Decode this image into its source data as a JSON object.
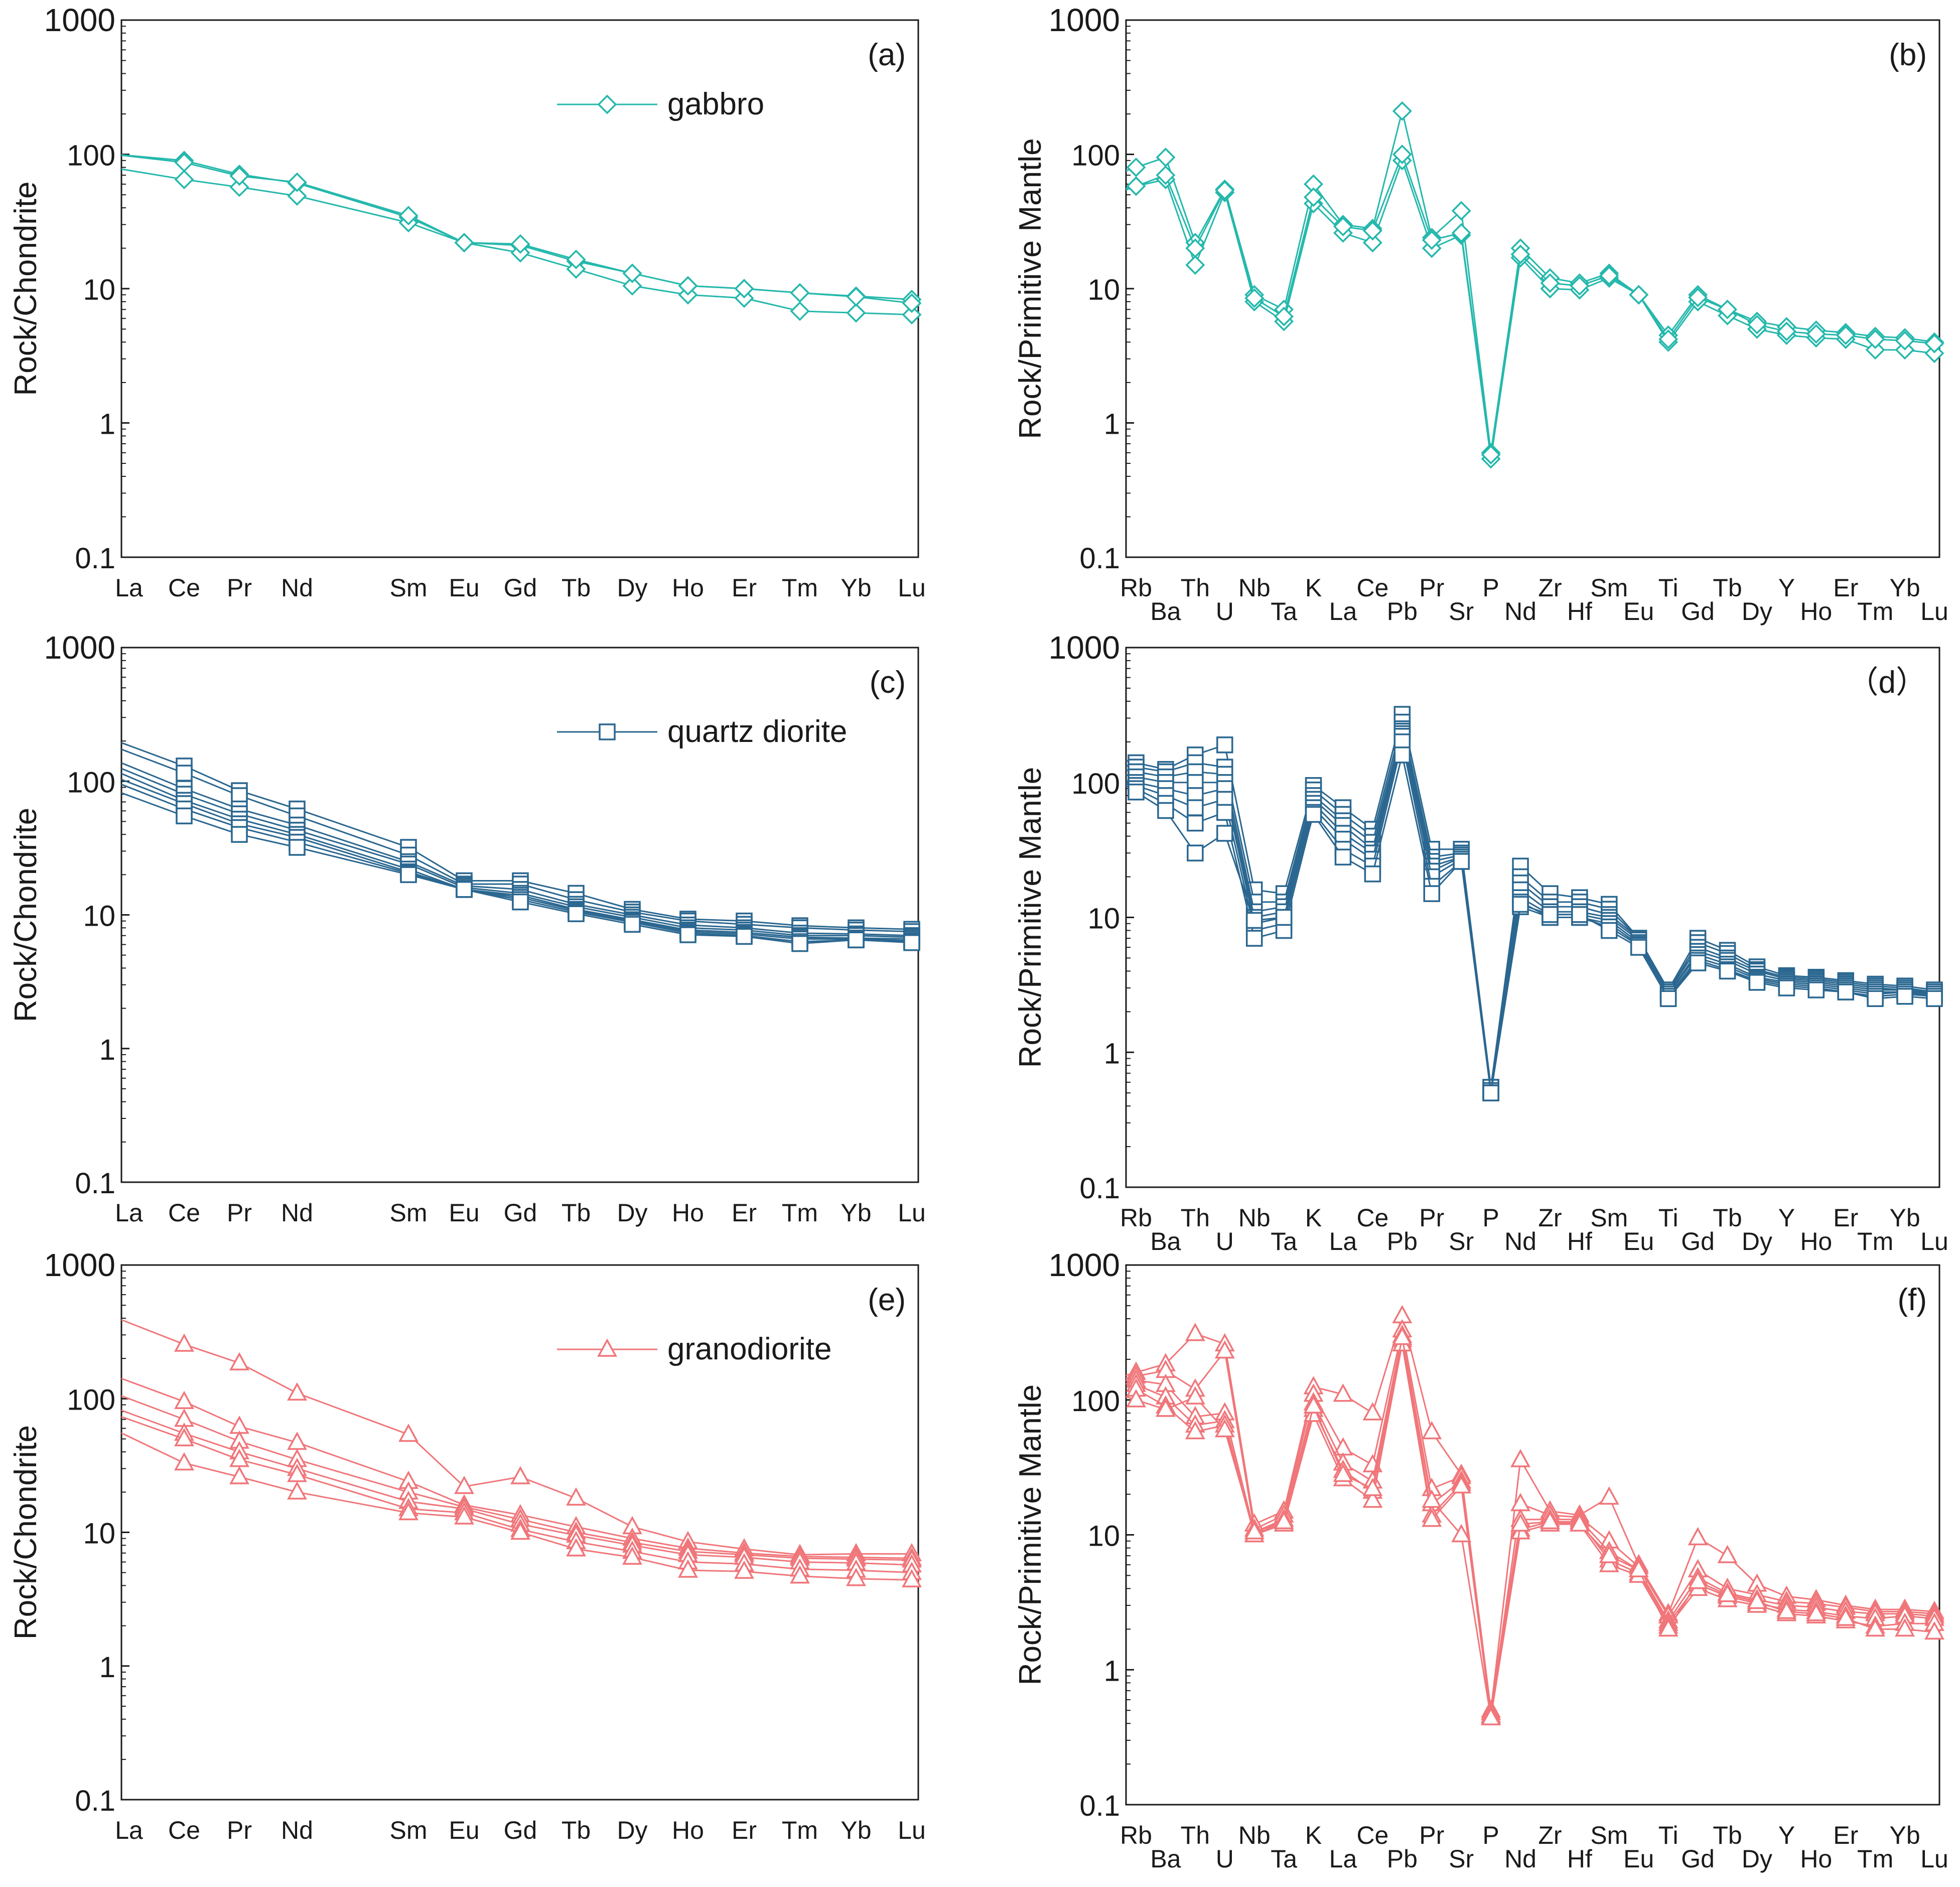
{
  "colors": {
    "gabbro": "#25b8ac",
    "quartz_diorite": "#2b6790",
    "granodiorite": "#f0767a",
    "axis": "#1a1a1a"
  },
  "chart_data": [
    {
      "panel": "a",
      "type": "line",
      "scale": "log",
      "panel_label": "(a)",
      "ylabel": "Rock/Chondrite",
      "ylim": [
        0.1,
        1000
      ],
      "yticks": [
        "0.1",
        "1",
        "10",
        "100",
        "1000"
      ],
      "legend": "gabbro",
      "marker": "diamond",
      "color_key": "gabbro",
      "categories": [
        "La",
        "Ce",
        "Pr",
        "Nd",
        "Sm",
        "Eu",
        "Gd",
        "Tb",
        "Dy",
        "Ho",
        "Er",
        "Tm",
        "Yb",
        "Lu"
      ],
      "category_slots": [
        0,
        1,
        2,
        3,
        5,
        6,
        7,
        8,
        9,
        10,
        11,
        12,
        13,
        14
      ],
      "series": [
        {
          "name": "gabbro-1",
          "values": [
            98,
            90,
            71,
            61,
            34,
            22,
            21,
            16,
            13,
            10.5,
            10,
            9.3,
            8.8,
            8.3
          ]
        },
        {
          "name": "gabbro-2",
          "values": [
            76,
            65,
            57,
            49,
            31,
            22,
            18.5,
            14,
            10.5,
            9,
            8.5,
            6.8,
            6.6,
            6.4
          ]
        },
        {
          "name": "gabbro-3",
          "values": [
            97,
            87,
            69,
            62,
            35,
            22,
            21.5,
            16.5,
            13,
            10.5,
            10,
            9.3,
            8.7,
            7.8
          ]
        }
      ]
    },
    {
      "panel": "b",
      "type": "line",
      "scale": "log",
      "panel_label": "(b)",
      "ylabel": "Rock/Primitive Mantle",
      "ylim": [
        0.1,
        1000
      ],
      "yticks": [
        "0.1",
        "1",
        "10",
        "100",
        "1000"
      ],
      "marker": "diamond",
      "color_key": "gabbro",
      "categories": [
        "Rb",
        "Ba",
        "Th",
        "U",
        "Nb",
        "Ta",
        "K",
        "La",
        "Ce",
        "Pb",
        "Pr",
        "Sr",
        "P",
        "Nd",
        "Zr",
        "Hf",
        "Sm",
        "Eu",
        "Ti",
        "Gd",
        "Tb",
        "Dy",
        "Y",
        "Ho",
        "Er",
        "Tm",
        "Yb",
        "Lu"
      ],
      "series": [
        {
          "name": "gabbro-1",
          "values": [
            80,
            95,
            22,
            55,
            9,
            7,
            60,
            30,
            28,
            210,
            24,
            38,
            0.6,
            20,
            12,
            11,
            13,
            9,
            4.5,
            9,
            7,
            5.7,
            5.2,
            4.9,
            4.7,
            4.4,
            4.3,
            4
          ]
        },
        {
          "name": "gabbro-2",
          "values": [
            58,
            65,
            15,
            52,
            8,
            5.7,
            43,
            26,
            22,
            90,
            20,
            25,
            0.54,
            17,
            10,
            9.8,
            12,
            9,
            4,
            8,
            6.3,
            5,
            4.5,
            4.3,
            4.2,
            3.5,
            3.5,
            3.3
          ]
        },
        {
          "name": "gabbro-3",
          "values": [
            58,
            70,
            20,
            54,
            8.5,
            6.2,
            48,
            29,
            27,
            100,
            23,
            26,
            0.58,
            18,
            11,
            10.5,
            12.5,
            9,
            4.2,
            8.6,
            7,
            5.4,
            4.8,
            4.6,
            4.5,
            4.2,
            4.1,
            3.9
          ]
        }
      ]
    },
    {
      "panel": "c",
      "type": "line",
      "scale": "log",
      "panel_label": "(c)",
      "ylabel": "Rock/Chondrite",
      "ylim": [
        0.1,
        1000
      ],
      "yticks": [
        "0.1",
        "1",
        "10",
        "100",
        "1000"
      ],
      "legend": "quartz diorite",
      "marker": "square",
      "color_key": "quartz_diorite",
      "categories": [
        "La",
        "Ce",
        "Pr",
        "Nd",
        "Sm",
        "Eu",
        "Gd",
        "Tb",
        "Dy",
        "Ho",
        "Er",
        "Tm",
        "Yb",
        "Lu"
      ],
      "category_slots": [
        0,
        1,
        2,
        3,
        5,
        6,
        7,
        8,
        9,
        10,
        11,
        12,
        13,
        14
      ],
      "series": [
        {
          "name": "qd-1",
          "values": [
            185,
            130,
            85,
            62,
            32,
            18,
            18,
            14.5,
            11,
            9.3,
            9,
            8.3,
            8,
            7.8
          ]
        },
        {
          "name": "qd-2",
          "values": [
            165,
            115,
            78,
            55,
            28,
            17,
            17,
            13,
            10.5,
            9,
            8.5,
            8,
            7.7,
            7.5
          ]
        },
        {
          "name": "qd-3",
          "values": [
            130,
            88,
            62,
            47,
            25,
            16.5,
            15.5,
            12,
            10,
            8.4,
            8,
            7.3,
            7.2,
            7
          ]
        },
        {
          "name": "qd-4",
          "values": [
            118,
            80,
            57,
            43,
            24,
            16,
            14.5,
            11.5,
            9.6,
            8,
            7.7,
            7,
            7,
            6.8
          ]
        },
        {
          "name": "qd-5",
          "values": [
            108,
            72,
            52,
            40,
            22,
            15.5,
            14,
            11,
            9.2,
            7.7,
            7.4,
            6.8,
            6.7,
            6.6
          ]
        },
        {
          "name": "qd-6",
          "values": [
            98,
            68,
            48,
            38,
            21,
            15.5,
            13.5,
            10.8,
            9,
            7.5,
            7.2,
            6.6,
            6.6,
            6.4
          ]
        },
        {
          "name": "qd-7",
          "values": [
            90,
            62,
            45,
            35,
            20.5,
            15.5,
            13,
            10.5,
            8.8,
            7.3,
            7,
            6.3,
            6.5,
            6.3
          ]
        },
        {
          "name": "qd-8",
          "values": [
            78,
            55,
            40,
            32,
            20,
            15.5,
            12.5,
            10.2,
            8.5,
            7.1,
            6.9,
            6.1,
            6.5,
            6.2
          ]
        }
      ]
    },
    {
      "panel": "d",
      "type": "line",
      "scale": "log",
      "panel_label": "（d）",
      "ylabel": "Rock/Primitive Mantle",
      "ylim": [
        0.1,
        1000
      ],
      "yticks": [
        "0.1",
        "1",
        "10",
        "100",
        "1000"
      ],
      "marker": "square",
      "color_key": "quartz_diorite",
      "categories": [
        "Rb",
        "Ba",
        "Th",
        "U",
        "Nb",
        "Ta",
        "K",
        "La",
        "Ce",
        "Pb",
        "Pr",
        "Sr",
        "P",
        "Nd",
        "Zr",
        "Hf",
        "Sm",
        "Eu",
        "Ti",
        "Gd",
        "Tb",
        "Dy",
        "Y",
        "Ho",
        "Er",
        "Tm",
        "Yb",
        "Lu"
      ],
      "series": [
        {
          "name": "qd-1",
          "values": [
            140,
            125,
            160,
            190,
            16,
            15,
            95,
            65,
            45,
            320,
            32,
            32,
            0.55,
            24,
            15,
            14,
            12.5,
            7,
            2.9,
            7,
            5.7,
            4.3,
            3.7,
            3.6,
            3.4,
            3.2,
            3.1,
            2.9
          ]
        },
        {
          "name": "qd-2",
          "values": [
            130,
            120,
            140,
            130,
            13,
            13,
            88,
            58,
            40,
            280,
            28,
            30,
            0.55,
            20,
            13,
            13,
            11.5,
            7,
            2.8,
            6.5,
            5.4,
            4.1,
            3.6,
            3.5,
            3.3,
            3.1,
            3,
            2.8
          ]
        },
        {
          "name": "qd-3",
          "values": [
            120,
            110,
            120,
            115,
            11,
            12,
            80,
            52,
            36,
            250,
            26,
            29,
            0.52,
            18,
            12,
            12,
            10.5,
            7,
            2.8,
            6,
            5,
            4,
            3.5,
            3.4,
            3.2,
            3,
            2.9,
            2.8
          ]
        },
        {
          "name": "qd-4",
          "values": [
            110,
            100,
            100,
            100,
            10,
            11,
            75,
            48,
            32,
            240,
            24,
            28,
            0.52,
            16,
            11,
            11,
            10,
            6.8,
            2.7,
            5.6,
            4.8,
            3.8,
            3.4,
            3.3,
            3.1,
            2.9,
            2.9,
            2.7
          ]
        },
        {
          "name": "qd-5",
          "values": [
            100,
            90,
            80,
            90,
            9,
            10,
            70,
            42,
            30,
            230,
            22,
            28,
            0.5,
            14,
            10.5,
            10.5,
            9.5,
            6.5,
            2.7,
            5.3,
            4.5,
            3.6,
            3.3,
            3.2,
            3,
            2.8,
            2.8,
            2.7
          ]
        },
        {
          "name": "qd-6",
          "values": [
            95,
            80,
            65,
            75,
            8,
            9,
            65,
            38,
            27,
            220,
            20,
            27,
            0.5,
            13,
            10,
            10,
            9,
            6.3,
            2.6,
            5,
            4.3,
            3.5,
            3.2,
            3.1,
            2.9,
            2.7,
            2.8,
            2.6
          ]
        },
        {
          "name": "qd-7",
          "values": [
            90,
            70,
            50,
            60,
            7,
            8,
            60,
            32,
            24,
            200,
            17,
            26,
            0.5,
            12,
            10,
            10,
            8.5,
            6.2,
            2.5,
            4.8,
            4.1,
            3.4,
            3.1,
            3,
            2.8,
            2.6,
            2.7,
            2.6
          ]
        },
        {
          "name": "qd-8",
          "values": [
            85,
            62,
            30,
            42,
            9.5,
            10,
            58,
            28,
            21,
            160,
            15,
            26,
            0.5,
            12.5,
            10.5,
            10.5,
            8,
            6,
            2.5,
            4.6,
            4,
            3.3,
            3,
            2.9,
            2.8,
            2.5,
            2.6,
            2.5
          ]
        }
      ]
    },
    {
      "panel": "e",
      "type": "line",
      "scale": "log",
      "panel_label": "(e)",
      "ylabel": "Rock/Chondrite",
      "ylim": [
        0.1,
        1000
      ],
      "yticks": [
        "0.1",
        "1",
        "10",
        "100",
        "1000"
      ],
      "legend": "granodiorite",
      "marker": "triangle",
      "color_key": "granodiorite",
      "categories": [
        "La",
        "Ce",
        "Pr",
        "Nd",
        "Sm",
        "Eu",
        "Gd",
        "Tb",
        "Dy",
        "Ho",
        "Er",
        "Tm",
        "Yb",
        "Lu"
      ],
      "category_slots": [
        0,
        1,
        2,
        3,
        5,
        6,
        7,
        8,
        9,
        10,
        11,
        12,
        13,
        14
      ],
      "series": [
        {
          "name": "gd-1",
          "values": [
            370,
            255,
            185,
            110,
            54,
            22,
            26,
            18,
            11,
            8.5,
            7.5,
            6.8,
            6.9,
            6.9
          ]
        },
        {
          "name": "gd-2",
          "values": [
            135,
            95,
            62,
            47,
            24,
            16,
            13.5,
            11,
            9,
            7.6,
            7,
            6.6,
            6.5,
            6.4
          ]
        },
        {
          "name": "gd-3",
          "values": [
            100,
            70,
            48,
            35,
            20,
            15.5,
            12.5,
            10,
            8.4,
            7.2,
            6.8,
            6.4,
            6.3,
            6.2
          ]
        },
        {
          "name": "gd-4",
          "values": [
            78,
            55,
            40,
            30,
            17,
            15,
            11.5,
            9.5,
            8,
            6.8,
            6.5,
            6,
            5.9,
            5.7
          ]
        },
        {
          "name": "gd-5",
          "values": [
            70,
            50,
            35,
            27,
            15,
            14,
            10.5,
            8.5,
            7.2,
            6,
            5.8,
            5.3,
            5.2,
            5
          ]
        },
        {
          "name": "gd-6",
          "values": [
            52,
            33,
            26,
            20,
            14,
            13,
            10,
            7.5,
            6.5,
            5.2,
            5.1,
            4.7,
            4.5,
            4.4
          ]
        }
      ]
    },
    {
      "panel": "f",
      "type": "line",
      "scale": "log",
      "panel_label": "(f)",
      "ylabel": "Rock/Primitive Mantle",
      "ylim": [
        0.1,
        1000
      ],
      "yticks": [
        "0.1",
        "1",
        "10",
        "100",
        "1000"
      ],
      "marker": "triangle",
      "color_key": "granodiorite",
      "categories": [
        "Rb",
        "Ba",
        "Th",
        "U",
        "Nb",
        "Ta",
        "K",
        "La",
        "Ce",
        "Pb",
        "Pr",
        "Sr",
        "P",
        "Nd",
        "Zr",
        "Hf",
        "Sm",
        "Eu",
        "Ti",
        "Gd",
        "Tb",
        "Dy",
        "Y",
        "Ho",
        "Er",
        "Tm",
        "Yb",
        "Lu"
      ],
      "series": [
        {
          "name": "gd-1",
          "values": [
            160,
            185,
            310,
            260,
            12,
            15,
            125,
            110,
            80,
            420,
            58,
            28,
            0.5,
            36,
            15,
            14,
            19,
            6,
            2.6,
            9.5,
            7,
            4.3,
            3.5,
            3.3,
            3,
            2.8,
            2.8,
            2.7
          ]
        },
        {
          "name": "gd-2",
          "values": [
            150,
            165,
            120,
            230,
            11,
            14,
            110,
            44,
            33,
            330,
            22,
            27,
            0.48,
            17,
            14,
            13.5,
            9,
            5.8,
            2.5,
            5.5,
            4,
            3.6,
            3.2,
            3.1,
            2.9,
            2.7,
            2.7,
            2.6
          ]
        },
        {
          "name": "gd-3",
          "values": [
            140,
            130,
            75,
            80,
            10.5,
            13,
            95,
            34,
            25,
            300,
            17,
            25,
            0.48,
            13,
            13,
            13,
            7.5,
            5.5,
            2.3,
            4.8,
            3.7,
            3.3,
            3,
            2.9,
            2.7,
            2.6,
            2.6,
            2.5
          ]
        },
        {
          "name": "gd-4",
          "values": [
            130,
            105,
            65,
            70,
            10,
            12.5,
            85,
            30,
            21,
            280,
            14,
            24,
            0.46,
            11,
            12.5,
            12.5,
            6.5,
            5.2,
            2.2,
            4.3,
            3.5,
            3.1,
            2.8,
            2.7,
            2.5,
            2.4,
            2.5,
            2.4
          ]
        },
        {
          "name": "gd-5",
          "values": [
            120,
            90,
            58,
            65,
            10,
            12,
            78,
            26,
            18,
            260,
            13,
            23,
            0.45,
            10.5,
            12,
            12,
            6,
            5,
            2.1,
            4,
            3.3,
            3,
            2.6,
            2.5,
            2.3,
            2.1,
            2.2,
            2.2
          ]
        },
        {
          "name": "gd-6",
          "values": [
            100,
            85,
            105,
            60,
            10.5,
            12.5,
            90,
            28,
            22,
            290,
            18,
            10,
            0.44,
            12,
            12.5,
            12,
            7,
            5.5,
            2,
            4.5,
            3.6,
            3.2,
            2.7,
            2.6,
            2.4,
            2,
            2,
            1.9
          ]
        }
      ]
    }
  ]
}
